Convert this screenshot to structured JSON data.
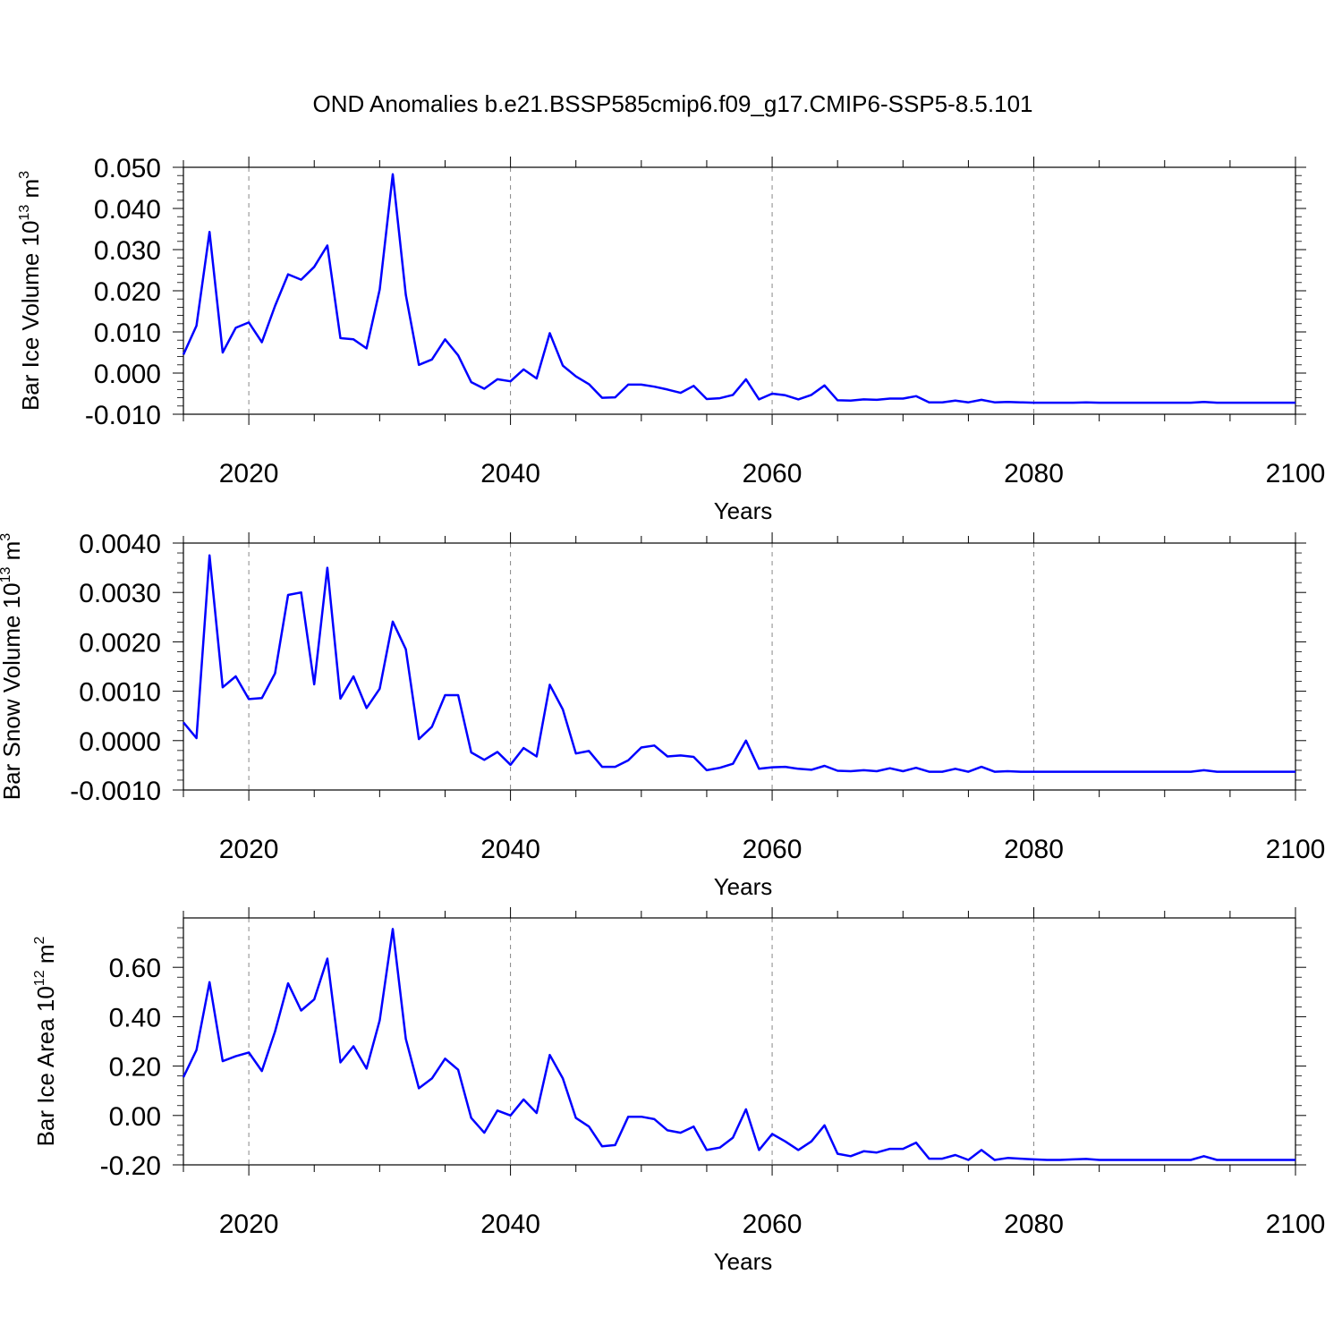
{
  "title": "OND Anomalies b.e21.BSSP585cmip6.f09_g17.CMIP6-SSP5-8.5.101",
  "colors": {
    "line": "#0000ff",
    "axis": "#000000",
    "grid": "#888888",
    "background": "#ffffff"
  },
  "chart_data": [
    {
      "type": "line",
      "ylabel_main": "Bar Ice Volume 10",
      "ylabel_exp": "13",
      "ylabel_unit": " m",
      "ylabel_unit_exp": "3",
      "xlabel": "Years",
      "xlim": [
        2015,
        2100
      ],
      "ylim": [
        -0.01,
        0.05
      ],
      "xticks": [
        2020,
        2040,
        2060,
        2080,
        2100
      ],
      "xtick_labels": [
        "2020",
        "2040",
        "2060",
        "2080",
        "2100"
      ],
      "yticks": [
        -0.01,
        0.0,
        0.01,
        0.02,
        0.03,
        0.04,
        0.05
      ],
      "ytick_labels": [
        "-0.010",
        "0.000",
        "0.010",
        "0.020",
        "0.030",
        "0.040",
        "0.050"
      ],
      "grid": "vertical dashed at major x ticks",
      "x": [
        2015,
        2016,
        2017,
        2018,
        2019,
        2020,
        2021,
        2022,
        2023,
        2024,
        2025,
        2026,
        2027,
        2028,
        2029,
        2030,
        2031,
        2032,
        2033,
        2034,
        2035,
        2036,
        2037,
        2038,
        2039,
        2040,
        2041,
        2042,
        2043,
        2044,
        2045,
        2046,
        2047,
        2048,
        2049,
        2050,
        2051,
        2052,
        2053,
        2054,
        2055,
        2056,
        2057,
        2058,
        2059,
        2060,
        2061,
        2062,
        2063,
        2064,
        2065,
        2066,
        2067,
        2068,
        2069,
        2070,
        2071,
        2072,
        2073,
        2074,
        2075,
        2076,
        2077,
        2078,
        2079,
        2080,
        2081,
        2082,
        2083,
        2084,
        2085,
        2086,
        2087,
        2088,
        2089,
        2090,
        2091,
        2092,
        2093,
        2094,
        2095,
        2096,
        2097,
        2098,
        2099,
        2100
      ],
      "y": [
        0.0045,
        0.0115,
        0.0343,
        0.005,
        0.011,
        0.0123,
        0.0075,
        0.0163,
        0.024,
        0.0227,
        0.0258,
        0.031,
        0.0085,
        0.0082,
        0.006,
        0.0203,
        0.0483,
        0.019,
        0.002,
        0.0033,
        0.0082,
        0.0043,
        -0.0022,
        -0.0038,
        -0.0015,
        -0.002,
        0.0009,
        -0.0013,
        0.0097,
        0.0018,
        -0.0008,
        -0.0027,
        -0.006,
        -0.0059,
        -0.0028,
        -0.0028,
        -0.0033,
        -0.004,
        -0.0048,
        -0.0031,
        -0.0063,
        -0.0061,
        -0.0053,
        -0.0015,
        -0.0064,
        -0.005,
        -0.0054,
        -0.0064,
        -0.0053,
        -0.003,
        -0.0066,
        -0.0067,
        -0.0064,
        -0.0065,
        -0.0062,
        -0.0062,
        -0.0056,
        -0.0071,
        -0.0071,
        -0.0067,
        -0.0071,
        -0.0065,
        -0.0071,
        -0.007,
        -0.0071,
        -0.0072,
        -0.0072,
        -0.0072,
        -0.0072,
        -0.0071,
        -0.0072,
        -0.0072,
        -0.0072,
        -0.0072,
        -0.0072,
        -0.0072,
        -0.0072,
        -0.0072,
        -0.007,
        -0.0072,
        -0.0072,
        -0.0072,
        -0.0072,
        -0.0072,
        -0.0072,
        -0.0072
      ]
    },
    {
      "type": "line",
      "ylabel_main": "Bar Snow Volume 10",
      "ylabel_exp": "13",
      "ylabel_unit": " m",
      "ylabel_unit_exp": "3",
      "xlabel": "Years",
      "xlim": [
        2015,
        2100
      ],
      "ylim": [
        -0.001,
        0.004
      ],
      "xticks": [
        2020,
        2040,
        2060,
        2080,
        2100
      ],
      "xtick_labels": [
        "2020",
        "2040",
        "2060",
        "2080",
        "2100"
      ],
      "yticks": [
        -0.001,
        0.0,
        0.001,
        0.002,
        0.003,
        0.004
      ],
      "ytick_labels": [
        "-0.0010",
        "0.0000",
        "0.0010",
        "0.0020",
        "0.0030",
        "0.0040"
      ],
      "grid": "vertical dashed at major x ticks",
      "x": [
        2015,
        2016,
        2017,
        2018,
        2019,
        2020,
        2021,
        2022,
        2023,
        2024,
        2025,
        2026,
        2027,
        2028,
        2029,
        2030,
        2031,
        2032,
        2033,
        2034,
        2035,
        2036,
        2037,
        2038,
        2039,
        2040,
        2041,
        2042,
        2043,
        2044,
        2045,
        2046,
        2047,
        2048,
        2049,
        2050,
        2051,
        2052,
        2053,
        2054,
        2055,
        2056,
        2057,
        2058,
        2059,
        2060,
        2061,
        2062,
        2063,
        2064,
        2065,
        2066,
        2067,
        2068,
        2069,
        2070,
        2071,
        2072,
        2073,
        2074,
        2075,
        2076,
        2077,
        2078,
        2079,
        2080,
        2081,
        2082,
        2083,
        2084,
        2085,
        2086,
        2087,
        2088,
        2089,
        2090,
        2091,
        2092,
        2093,
        2094,
        2095,
        2096,
        2097,
        2098,
        2099,
        2100
      ],
      "y": [
        0.00037,
        5e-05,
        0.00375,
        0.00108,
        0.0013,
        0.00084,
        0.00086,
        0.00136,
        0.00295,
        0.003,
        0.00114,
        0.0035,
        0.00085,
        0.0013,
        0.00066,
        0.00105,
        0.00241,
        0.00185,
        3e-05,
        0.00028,
        0.00092,
        0.00092,
        -0.00024,
        -0.00039,
        -0.00023,
        -0.00049,
        -0.00015,
        -0.00032,
        0.00113,
        0.00063,
        -0.00026,
        -0.00021,
        -0.00053,
        -0.00053,
        -0.0004,
        -0.00014,
        -0.0001,
        -0.00032,
        -0.0003,
        -0.00033,
        -0.0006,
        -0.00055,
        -0.00047,
        0.0,
        -0.00057,
        -0.00054,
        -0.00053,
        -0.00057,
        -0.00059,
        -0.00051,
        -0.00061,
        -0.00062,
        -0.0006,
        -0.00062,
        -0.00056,
        -0.00062,
        -0.00055,
        -0.00063,
        -0.00063,
        -0.00057,
        -0.00063,
        -0.00053,
        -0.00063,
        -0.00062,
        -0.00063,
        -0.00063,
        -0.00063,
        -0.00063,
        -0.00063,
        -0.00063,
        -0.00063,
        -0.00063,
        -0.00063,
        -0.00063,
        -0.00063,
        -0.00063,
        -0.00063,
        -0.00063,
        -0.0006,
        -0.00063,
        -0.00063,
        -0.00063,
        -0.00063,
        -0.00063,
        -0.00063,
        -0.00063
      ]
    },
    {
      "type": "line",
      "ylabel_main": "Bar Ice Area 10",
      "ylabel_exp": "12",
      "ylabel_unit": " m",
      "ylabel_unit_exp": "2",
      "xlabel": "Years",
      "xlim": [
        2015,
        2100
      ],
      "ylim": [
        -0.2,
        0.8
      ],
      "xticks": [
        2020,
        2040,
        2060,
        2080,
        2100
      ],
      "xtick_labels": [
        "2020",
        "2040",
        "2060",
        "2080",
        "2100"
      ],
      "yticks": [
        -0.2,
        0.0,
        0.2,
        0.4,
        0.6
      ],
      "ytick_labels": [
        "-0.20",
        "0.00",
        "0.20",
        "0.40",
        "0.60"
      ],
      "grid": "vertical dashed at major x ticks",
      "x": [
        2015,
        2016,
        2017,
        2018,
        2019,
        2020,
        2021,
        2022,
        2023,
        2024,
        2025,
        2026,
        2027,
        2028,
        2029,
        2030,
        2031,
        2032,
        2033,
        2034,
        2035,
        2036,
        2037,
        2038,
        2039,
        2040,
        2041,
        2042,
        2043,
        2044,
        2045,
        2046,
        2047,
        2048,
        2049,
        2050,
        2051,
        2052,
        2053,
        2054,
        2055,
        2056,
        2057,
        2058,
        2059,
        2060,
        2061,
        2062,
        2063,
        2064,
        2065,
        2066,
        2067,
        2068,
        2069,
        2070,
        2071,
        2072,
        2073,
        2074,
        2075,
        2076,
        2077,
        2078,
        2079,
        2080,
        2081,
        2082,
        2083,
        2084,
        2085,
        2086,
        2087,
        2088,
        2089,
        2090,
        2091,
        2092,
        2093,
        2094,
        2095,
        2096,
        2097,
        2098,
        2099,
        2100
      ],
      "y": [
        0.155,
        0.265,
        0.54,
        0.22,
        0.24,
        0.255,
        0.18,
        0.34,
        0.535,
        0.425,
        0.47,
        0.635,
        0.215,
        0.28,
        0.19,
        0.385,
        0.755,
        0.31,
        0.11,
        0.15,
        0.23,
        0.185,
        -0.01,
        -0.07,
        0.02,
        0.0,
        0.065,
        0.01,
        0.245,
        0.15,
        -0.01,
        -0.045,
        -0.125,
        -0.12,
        -0.005,
        -0.005,
        -0.015,
        -0.06,
        -0.07,
        -0.045,
        -0.14,
        -0.13,
        -0.09,
        0.025,
        -0.14,
        -0.075,
        -0.105,
        -0.14,
        -0.105,
        -0.04,
        -0.155,
        -0.165,
        -0.145,
        -0.15,
        -0.135,
        -0.135,
        -0.11,
        -0.175,
        -0.175,
        -0.16,
        -0.18,
        -0.14,
        -0.18,
        -0.172,
        -0.175,
        -0.178,
        -0.18,
        -0.18,
        -0.178,
        -0.176,
        -0.18,
        -0.18,
        -0.18,
        -0.18,
        -0.18,
        -0.18,
        -0.18,
        -0.18,
        -0.165,
        -0.18,
        -0.18,
        -0.18,
        -0.18,
        -0.18,
        -0.18,
        -0.18
      ]
    }
  ]
}
